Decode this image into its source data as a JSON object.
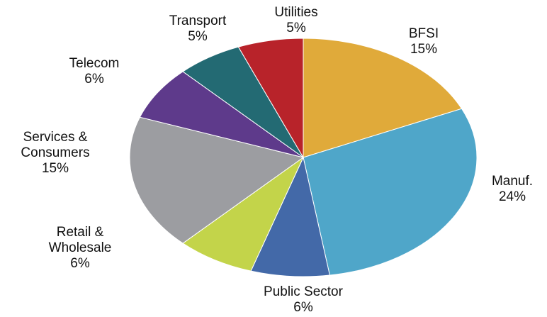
{
  "chart_data": {
    "type": "pie",
    "categories": [
      "BFSI",
      "Manuf.",
      "Public Sector",
      "Retail &\nWholesale",
      "Services &\nConsumers",
      "Telecom",
      "Transport",
      "Utilities"
    ],
    "values": [
      15,
      24,
      6,
      6,
      15,
      6,
      5,
      5
    ],
    "value_labels": [
      "15%",
      "24%",
      "6%",
      "6%",
      "15%",
      "6%",
      "5%",
      "5%"
    ],
    "colors": [
      "#e0aa3a",
      "#4fa6c9",
      "#4369a8",
      "#c3d44a",
      "#9c9da1",
      "#5e3a8b",
      "#236a73",
      "#b8232a"
    ]
  }
}
